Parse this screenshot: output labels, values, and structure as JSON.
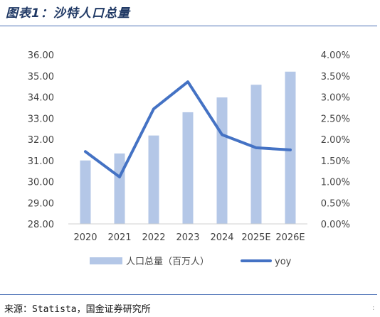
{
  "header": {
    "title": "图表1：沙特人口总量"
  },
  "footer": {
    "source": "来源：Statista，国金证券研究所",
    "corner_mark": ":"
  },
  "chart_data": {
    "type": "bar",
    "categories": [
      "2020",
      "2021",
      "2022",
      "2023",
      "2024",
      "2025E",
      "2026E"
    ],
    "series": [
      {
        "name": "人口总量（百万人）",
        "type": "bar",
        "axis": "left",
        "values": [
          31.0,
          31.33,
          32.18,
          33.28,
          33.98,
          34.58,
          35.2
        ]
      },
      {
        "name": "yoy",
        "type": "line",
        "axis": "right",
        "values": [
          0.0171,
          0.0111,
          0.0272,
          0.0336,
          0.0211,
          0.018,
          0.0175
        ]
      }
    ],
    "y_left": {
      "lim": [
        28.0,
        36.0
      ],
      "ticks": [
        "28.00",
        "29.00",
        "30.00",
        "31.00",
        "32.00",
        "33.00",
        "34.00",
        "35.00",
        "36.00"
      ]
    },
    "y_right": {
      "lim": [
        0.0,
        0.04
      ],
      "ticks": [
        "0.00%",
        "0.50%",
        "1.00%",
        "1.50%",
        "2.00%",
        "2.50%",
        "3.00%",
        "3.50%",
        "4.00%"
      ]
    },
    "grid": false,
    "legend": "bottom",
    "colors": {
      "bar": "#b4c7e7",
      "line": "#4472c4"
    }
  }
}
